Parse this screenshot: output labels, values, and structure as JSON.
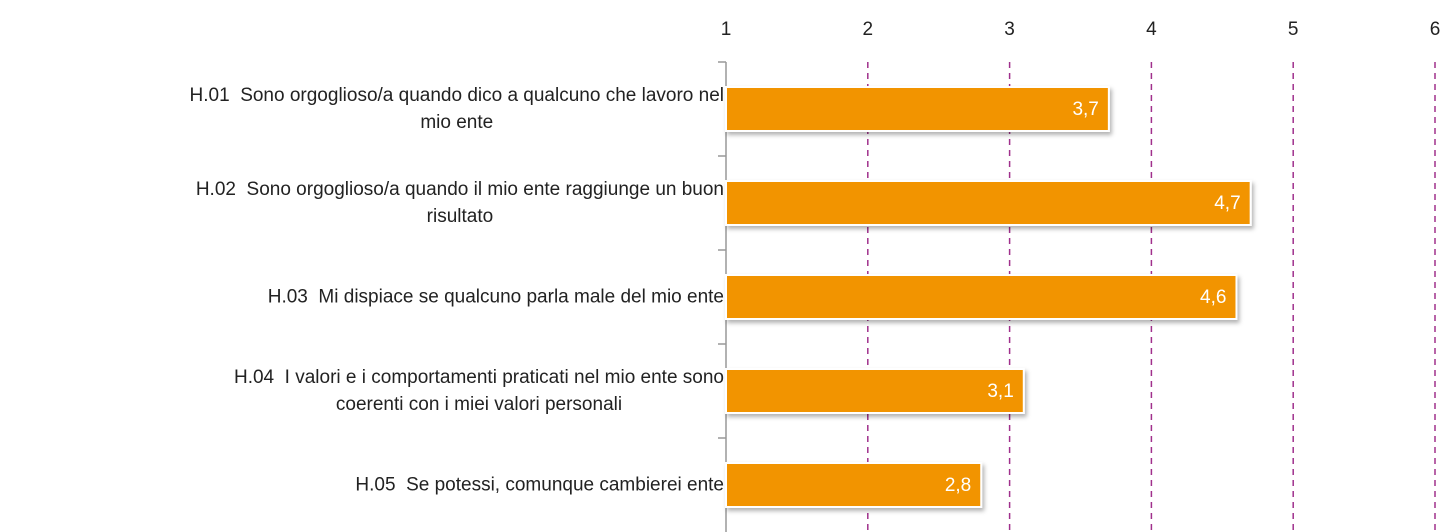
{
  "chart_data": {
    "type": "hbar",
    "categories": [
      "H.01  Sono orgoglioso/a quando dico a qualcuno che lavoro nel\nmio ente",
      "H.02  Sono orgoglioso/a quando il mio ente raggiunge un buon\nrisultato",
      "H.03  Mi dispiace se qualcuno parla male del mio ente",
      "H.04  I valori e i comportamenti praticati nel mio ente sono\ncoerenti con i miei valori personali",
      "H.05  Se potessi, comunque cambierei ente"
    ],
    "values": [
      3.7,
      4.7,
      4.6,
      3.1,
      2.8
    ],
    "value_labels": [
      "3,7",
      "4,7",
      "4,6",
      "3,1",
      "2,8"
    ],
    "color": "#f29400",
    "xlim": [
      1,
      6
    ],
    "xticks": [
      1,
      2,
      3,
      4,
      5,
      6
    ],
    "grid": true,
    "grid_color": "#a0308c"
  }
}
